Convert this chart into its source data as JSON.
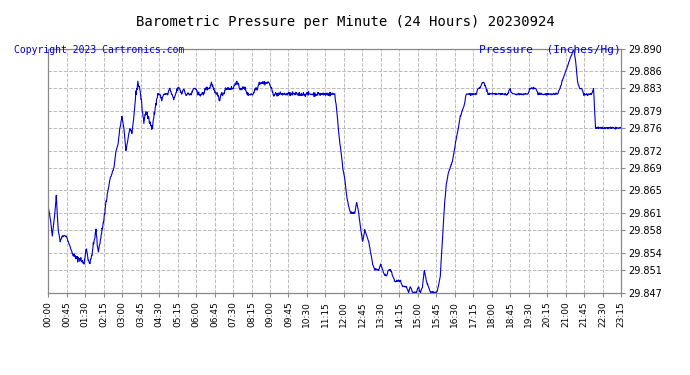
{
  "title": "Barometric Pressure per Minute (24 Hours) 20230924",
  "ylabel": "Pressure  (Inches/Hg)",
  "copyright_text": "Copyright 2023 Cartronics.com",
  "line_color": "#0000CC",
  "ylabel_color": "#0000CC",
  "copyright_color": "#0000CC",
  "background_color": "#ffffff",
  "plot_bg_color": "#ffffff",
  "grid_color": "#bbbbbb",
  "ylim": [
    29.847,
    29.89
  ],
  "yticks": [
    29.847,
    29.851,
    29.854,
    29.858,
    29.861,
    29.865,
    29.869,
    29.872,
    29.876,
    29.879,
    29.883,
    29.886,
    29.89
  ],
  "xtick_labels": [
    "00:00",
    "00:45",
    "01:30",
    "02:15",
    "03:00",
    "03:45",
    "04:30",
    "05:15",
    "06:00",
    "06:45",
    "07:30",
    "08:15",
    "09:00",
    "09:45",
    "10:30",
    "11:15",
    "12:00",
    "12:45",
    "13:30",
    "14:15",
    "15:00",
    "15:45",
    "16:30",
    "17:15",
    "18:00",
    "18:45",
    "19:30",
    "20:15",
    "21:00",
    "21:45",
    "22:30",
    "23:15"
  ],
  "num_points": 1440
}
